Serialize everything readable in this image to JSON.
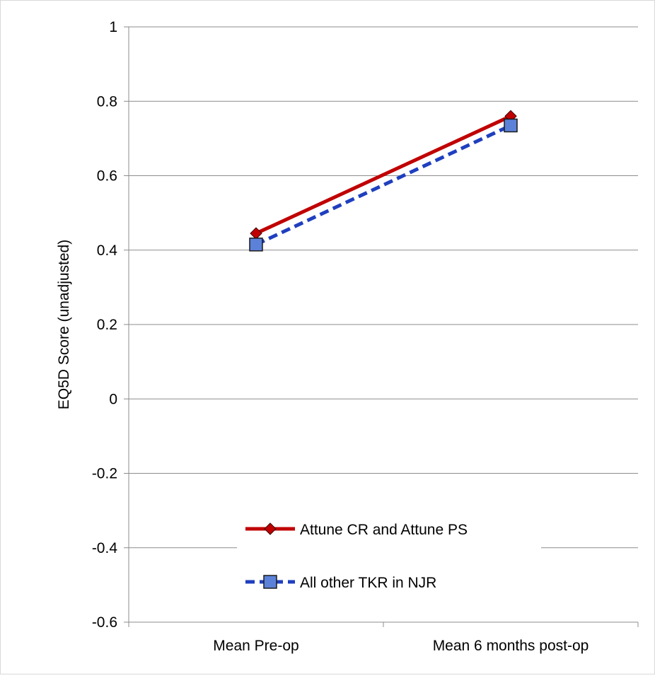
{
  "chart_data": {
    "type": "line",
    "title": "",
    "xlabel": "",
    "ylabel": "EQ5D Score (unadjusted)",
    "categories": [
      "Mean Pre-op",
      "Mean 6 months post-op"
    ],
    "ylim": [
      -0.6,
      1
    ],
    "yticks": [
      "-0.6",
      "-0.4",
      "-0.2",
      "0",
      "0.2",
      "0.4",
      "0.6",
      "0.8",
      "1"
    ],
    "grid": true,
    "legend_position": "bottom-center",
    "series": [
      {
        "name": "Attune CR and Attune PS",
        "values": [
          0.445,
          0.76
        ],
        "color": "#c00000",
        "marker": "diamond",
        "line_style": "solid"
      },
      {
        "name": "All other TKR in NJR",
        "values": [
          0.415,
          0.735
        ],
        "color": "#1f3fbf",
        "marker_fill": "#5b82d8",
        "marker": "square",
        "line_style": "dashed"
      }
    ]
  }
}
